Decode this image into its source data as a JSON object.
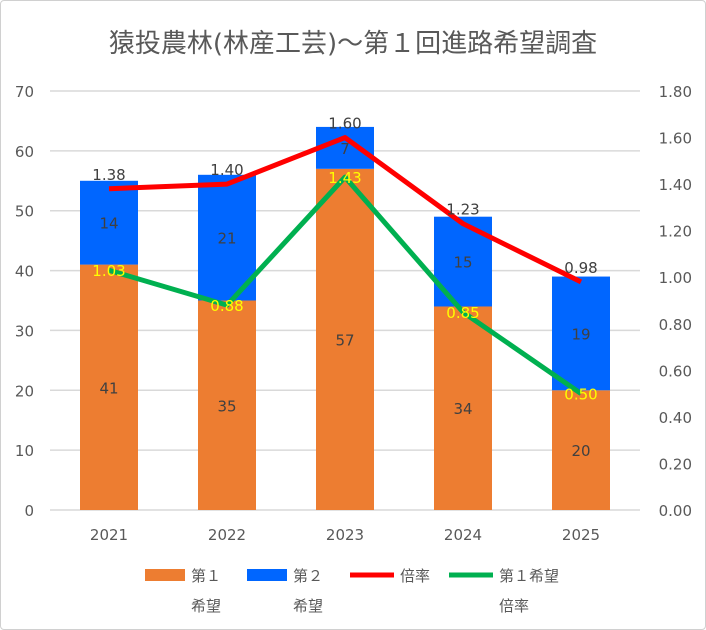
{
  "chart_data": {
    "type": "bar",
    "title": "猿投農林(林産工芸)～第１回進路希望調査",
    "categories": [
      "2021",
      "2022",
      "2023",
      "2024",
      "2025"
    ],
    "stacked": true,
    "series": [
      {
        "name": "第１希望",
        "kind": "bar",
        "axis": "left",
        "color": "#ED7D31",
        "values": [
          41,
          35,
          57,
          34,
          20
        ],
        "label_color": "#404040"
      },
      {
        "name": "第２希望",
        "kind": "bar",
        "axis": "left",
        "color": "#0066FF",
        "values": [
          14,
          21,
          7,
          15,
          19
        ],
        "label_color": "#404040"
      },
      {
        "name": "倍率",
        "kind": "line",
        "axis": "right",
        "color": "#FF0000",
        "values": [
          1.38,
          1.4,
          1.6,
          1.23,
          0.98
        ],
        "labels": [
          "1.38",
          "1.40",
          "1.60",
          "1.23",
          "0.98"
        ],
        "label_color": "#404040"
      },
      {
        "name": "第１希望倍率",
        "kind": "line",
        "axis": "right",
        "color": "#00B050",
        "values": [
          1.03,
          0.88,
          1.43,
          0.85,
          0.5
        ],
        "labels": [
          "1.03",
          "0.88",
          "1.43",
          "0.85",
          "0.50"
        ],
        "label_color": "#FFFF00"
      }
    ],
    "legend_lines": [
      [
        "第１",
        "希望"
      ],
      [
        "第２",
        "希望"
      ],
      [
        "倍率",
        ""
      ],
      [
        "第１希望",
        "倍率"
      ]
    ],
    "y_left": {
      "range": [
        0,
        70
      ],
      "ticks": [
        "0",
        "10",
        "20",
        "30",
        "40",
        "50",
        "60",
        "70"
      ]
    },
    "y_right": {
      "range": [
        0,
        1.8
      ],
      "ticks": [
        "0.00",
        "0.20",
        "0.40",
        "0.60",
        "0.80",
        "1.00",
        "1.20",
        "1.40",
        "1.60",
        "1.80"
      ]
    },
    "grid": true,
    "legend_position": "bottom"
  }
}
